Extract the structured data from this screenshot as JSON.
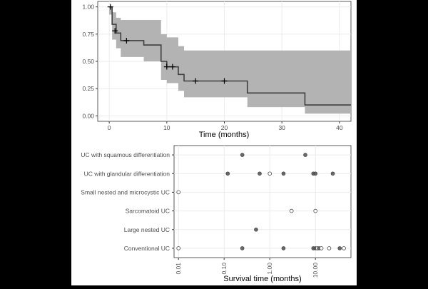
{
  "colors": {
    "background": "#000000",
    "figure_bg": "#ffffff",
    "ci_band": "#b3b3b3",
    "curve": "#3f3f3f",
    "grid": "#ebebeb",
    "point_fill": "#5a5a5a",
    "point_open": "#ffffff"
  },
  "chart_data": [
    {
      "type": "line",
      "subtype": "kaplan-meier",
      "title": "",
      "xlabel": "Time (months)",
      "ylabel": "",
      "xlim": [
        -2,
        42
      ],
      "ylim": [
        -0.05,
        1.05
      ],
      "x_ticks": [
        0,
        10,
        20,
        30,
        40
      ],
      "x_tick_labels": [
        "0",
        "10",
        "20",
        "30",
        "40"
      ],
      "y_ticks": [
        0,
        0.25,
        0.5,
        0.75,
        1
      ],
      "y_tick_labels": [
        "0.00",
        "0.25",
        "0.50",
        "0.75",
        "1.00"
      ],
      "grid": true,
      "steps": [
        {
          "x": 0,
          "y": 1.0,
          "lower": 0.93,
          "upper": 1.0
        },
        {
          "x": 0.5,
          "y": 0.84,
          "lower": 0.7,
          "upper": 0.95
        },
        {
          "x": 1.2,
          "y": 0.76,
          "lower": 0.62,
          "upper": 0.9
        },
        {
          "x": 2.0,
          "y": 0.69,
          "lower": 0.54,
          "upper": 0.88
        },
        {
          "x": 6.0,
          "y": 0.65,
          "lower": 0.5,
          "upper": 0.88
        },
        {
          "x": 9.0,
          "y": 0.5,
          "lower": 0.33,
          "upper": 0.75
        },
        {
          "x": 10.0,
          "y": 0.45,
          "lower": 0.3,
          "upper": 0.72
        },
        {
          "x": 12.0,
          "y": 0.38,
          "lower": 0.23,
          "upper": 0.64
        },
        {
          "x": 13.0,
          "y": 0.32,
          "lower": 0.17,
          "upper": 0.6
        },
        {
          "x": 24.0,
          "y": 0.21,
          "lower": 0.08,
          "upper": 0.6
        },
        {
          "x": 34.0,
          "y": 0.1,
          "lower": 0.02,
          "upper": 0.6
        },
        {
          "x": 42.0,
          "y": 0.1,
          "lower": 0.02,
          "upper": 0.6
        }
      ],
      "censored": [
        {
          "x": 0.2,
          "y": 1.0
        },
        {
          "x": 1.0,
          "y": 0.78
        },
        {
          "x": 3.0,
          "y": 0.69
        },
        {
          "x": 10.0,
          "y": 0.45
        },
        {
          "x": 11.0,
          "y": 0.45
        },
        {
          "x": 15.0,
          "y": 0.32
        },
        {
          "x": 20.0,
          "y": 0.32
        }
      ]
    },
    {
      "type": "scatter",
      "title": "",
      "xlabel": "Survival time (months)",
      "ylabel": "",
      "x_scale": "log10",
      "xlim": [
        0.008,
        60
      ],
      "x_ticks": [
        0.01,
        0.1,
        1,
        10
      ],
      "x_tick_labels": [
        "0.01",
        "0.10",
        "1.00",
        "10.00"
      ],
      "categories": [
        "UC with squamous differentiation",
        "UC with glandular differentiation",
        "Small nested and microcystic UC",
        "Sarcomatoid UC",
        "Large nested UC",
        "Conventional UC"
      ],
      "grid": true,
      "points": [
        {
          "category": "UC with squamous differentiation",
          "x": 0.25,
          "event": true
        },
        {
          "category": "UC with squamous differentiation",
          "x": 6.0,
          "event": true
        },
        {
          "category": "UC with glandular differentiation",
          "x": 0.12,
          "event": true
        },
        {
          "category": "UC with glandular differentiation",
          "x": 0.6,
          "event": true
        },
        {
          "category": "UC with glandular differentiation",
          "x": 1.0,
          "event": false
        },
        {
          "category": "UC with glandular differentiation",
          "x": 2.0,
          "event": true
        },
        {
          "category": "UC with glandular differentiation",
          "x": 9.0,
          "event": true
        },
        {
          "category": "UC with glandular differentiation",
          "x": 10.0,
          "event": true
        },
        {
          "category": "UC with glandular differentiation",
          "x": 24.0,
          "event": true
        },
        {
          "category": "Small nested and microcystic UC",
          "x": 0.01,
          "event": false
        },
        {
          "category": "Sarcomatoid UC",
          "x": 3.0,
          "event": false
        },
        {
          "category": "Sarcomatoid UC",
          "x": 10.0,
          "event": false
        },
        {
          "category": "Large nested UC",
          "x": 0.5,
          "event": true
        },
        {
          "category": "Conventional UC",
          "x": 0.01,
          "event": false
        },
        {
          "category": "Conventional UC",
          "x": 0.25,
          "event": true
        },
        {
          "category": "Conventional UC",
          "x": 2.0,
          "event": true
        },
        {
          "category": "Conventional UC",
          "x": 9.0,
          "event": true
        },
        {
          "category": "Conventional UC",
          "x": 10.0,
          "event": true
        },
        {
          "category": "Conventional UC",
          "x": 11.0,
          "event": false
        },
        {
          "category": "Conventional UC",
          "x": 12.0,
          "event": true
        },
        {
          "category": "Conventional UC",
          "x": 13.5,
          "event": false
        },
        {
          "category": "Conventional UC",
          "x": 20.0,
          "event": false
        },
        {
          "category": "Conventional UC",
          "x": 34.0,
          "event": true
        },
        {
          "category": "Conventional UC",
          "x": 42.0,
          "event": false
        }
      ]
    }
  ]
}
